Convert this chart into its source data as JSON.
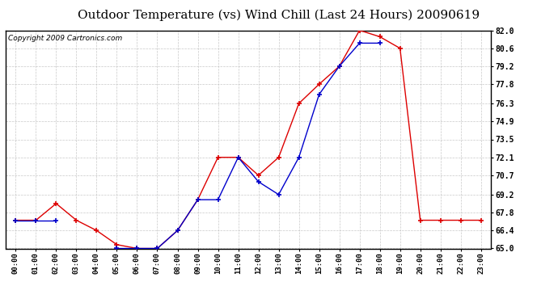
{
  "title": "Outdoor Temperature (vs) Wind Chill (Last 24 Hours) 20090619",
  "copyright": "Copyright 2009 Cartronics.com",
  "x_labels": [
    "00:00",
    "01:00",
    "02:00",
    "03:00",
    "04:00",
    "05:00",
    "06:00",
    "07:00",
    "08:00",
    "09:00",
    "10:00",
    "11:00",
    "12:00",
    "13:00",
    "14:00",
    "15:00",
    "16:00",
    "17:00",
    "18:00",
    "19:00",
    "20:00",
    "21:00",
    "22:00",
    "23:00"
  ],
  "temp_red": [
    67.2,
    67.2,
    68.5,
    67.2,
    66.4,
    65.3,
    65.0,
    65.0,
    66.4,
    68.8,
    72.1,
    72.1,
    70.7,
    72.1,
    76.3,
    77.8,
    79.2,
    82.0,
    81.5,
    80.6,
    67.2,
    67.2,
    67.2,
    67.2
  ],
  "wind_chill_blue": [
    67.2,
    67.2,
    67.2,
    null,
    null,
    65.0,
    65.0,
    65.0,
    66.4,
    68.8,
    68.8,
    72.1,
    70.2,
    69.2,
    72.1,
    77.0,
    79.2,
    81.0,
    81.0,
    null,
    null,
    null,
    null,
    null
  ],
  "ylim": [
    65.0,
    82.0
  ],
  "yticks": [
    65.0,
    66.4,
    67.8,
    69.2,
    70.7,
    72.1,
    73.5,
    74.9,
    76.3,
    77.8,
    79.2,
    80.6,
    82.0
  ],
  "bg_color": "#ffffff",
  "plot_bg_color": "#ffffff",
  "grid_color": "#bbbbbb",
  "red_color": "#dd0000",
  "blue_color": "#0000cc",
  "title_fontsize": 11,
  "copyright_fontsize": 6.5
}
